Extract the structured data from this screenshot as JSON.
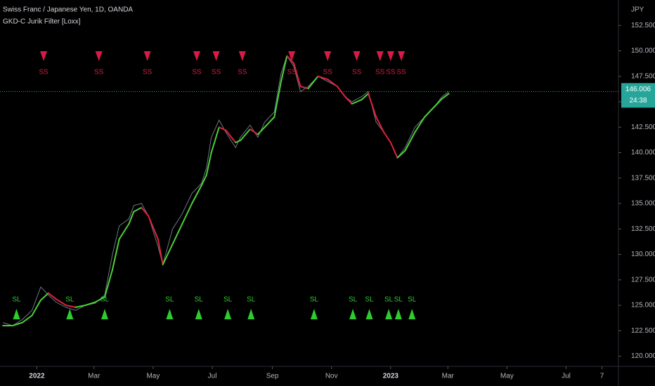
{
  "chart_data": {
    "type": "line",
    "title": "Swiss Franc / Japanese Yen, 1D, OANDA",
    "currency": "JPY",
    "x": [
      -35,
      -25,
      -15,
      -5,
      4,
      12,
      20,
      30,
      40,
      50,
      60,
      70,
      78,
      85,
      95,
      100,
      108,
      115,
      125,
      130,
      140,
      150,
      160,
      170,
      175,
      180,
      188,
      195,
      205,
      210,
      220,
      228,
      235,
      245,
      252,
      258,
      265,
      272,
      280,
      290,
      300,
      310,
      318,
      325,
      335,
      342,
      350,
      358,
      365,
      372,
      380,
      390,
      400,
      410,
      418,
      425
    ],
    "series": [
      {
        "name": "Swiss Franc / Japanese Yen",
        "color": "#6b7785",
        "values": [
          123.3,
          123.0,
          123.6,
          124.5,
          126.8,
          126.0,
          125.3,
          124.8,
          124.5,
          125.0,
          125.2,
          126.0,
          130.0,
          132.8,
          133.5,
          134.8,
          135.0,
          133.8,
          130.8,
          129.0,
          132.5,
          134.0,
          136.0,
          137.0,
          138.5,
          141.5,
          143.2,
          142.0,
          140.5,
          141.5,
          142.7,
          141.5,
          143.0,
          144.0,
          147.8,
          149.5,
          148.5,
          146.0,
          146.5,
          147.5,
          147.0,
          146.5,
          145.5,
          145.0,
          145.5,
          146.0,
          143.0,
          142.0,
          141.0,
          139.5,
          140.5,
          142.5,
          143.5,
          144.5,
          145.5,
          146.0
        ]
      },
      {
        "name": "GKD-C Jurik Filter [Loxx]",
        "color": "#4cd137",
        "down_color": "#e0233b",
        "values": [
          123.0,
          123.0,
          123.3,
          124.0,
          125.5,
          126.2,
          125.6,
          125.0,
          124.8,
          125.0,
          125.3,
          125.8,
          128.5,
          131.5,
          133.0,
          134.2,
          134.6,
          133.8,
          131.5,
          129.0,
          131.0,
          133.0,
          135.0,
          136.8,
          137.8,
          140.0,
          142.5,
          142.2,
          141.0,
          141.2,
          142.3,
          141.8,
          142.5,
          143.5,
          147.0,
          149.5,
          148.8,
          146.5,
          146.3,
          147.5,
          147.2,
          146.5,
          145.5,
          144.8,
          145.2,
          145.8,
          143.5,
          142.0,
          141.0,
          139.5,
          140.2,
          142.0,
          143.5,
          144.5,
          145.3,
          145.8
        ]
      }
    ],
    "short_signals": {
      "label": "SS",
      "color": "#d81b45",
      "x": [
        7,
        64,
        114,
        165,
        185,
        212,
        263,
        300,
        330,
        354,
        365,
        376
      ]
    },
    "long_signals": {
      "label": "SL",
      "color": "#2ecc2e",
      "x": [
        -21,
        34,
        70,
        137,
        167,
        197,
        221,
        286,
        326,
        343,
        363,
        373,
        387
      ]
    },
    "last_price": {
      "value": 146.006,
      "label": "146.006",
      "countdown": "24:38",
      "color": "#26a69a"
    },
    "xlim": [
      -38,
      600
    ],
    "xticks": [
      {
        "value": 0,
        "label": "2022"
      },
      {
        "value": 59,
        "label": "Mar"
      },
      {
        "value": 120,
        "label": "May"
      },
      {
        "value": 181,
        "label": "Jul"
      },
      {
        "value": 243,
        "label": "Sep"
      },
      {
        "value": 304,
        "label": "Nov"
      },
      {
        "value": 365,
        "label": "2023"
      },
      {
        "value": 424,
        "label": "Mar"
      },
      {
        "value": 485,
        "label": "May"
      },
      {
        "value": 546,
        "label": "Jul"
      },
      {
        "value": 583,
        "label": "7"
      }
    ],
    "ylim": [
      119,
      155
    ],
    "yticks": [
      {
        "value": 120,
        "label": "120.000"
      },
      {
        "value": 122.5,
        "label": "122.500"
      },
      {
        "value": 125,
        "label": "125.000"
      },
      {
        "value": 127.5,
        "label": "127.500"
      },
      {
        "value": 130,
        "label": "130.000"
      },
      {
        "value": 132.5,
        "label": "132.500"
      },
      {
        "value": 135,
        "label": "135.000"
      },
      {
        "value": 137.5,
        "label": "137.500"
      },
      {
        "value": 140,
        "label": "140.000"
      },
      {
        "value": 142.5,
        "label": "142.500"
      },
      {
        "value": 145,
        "label": "145.000"
      },
      {
        "value": 147.5,
        "label": "147.500"
      },
      {
        "value": 150,
        "label": "150.000"
      },
      {
        "value": 152.5,
        "label": "152.500"
      }
    ]
  }
}
